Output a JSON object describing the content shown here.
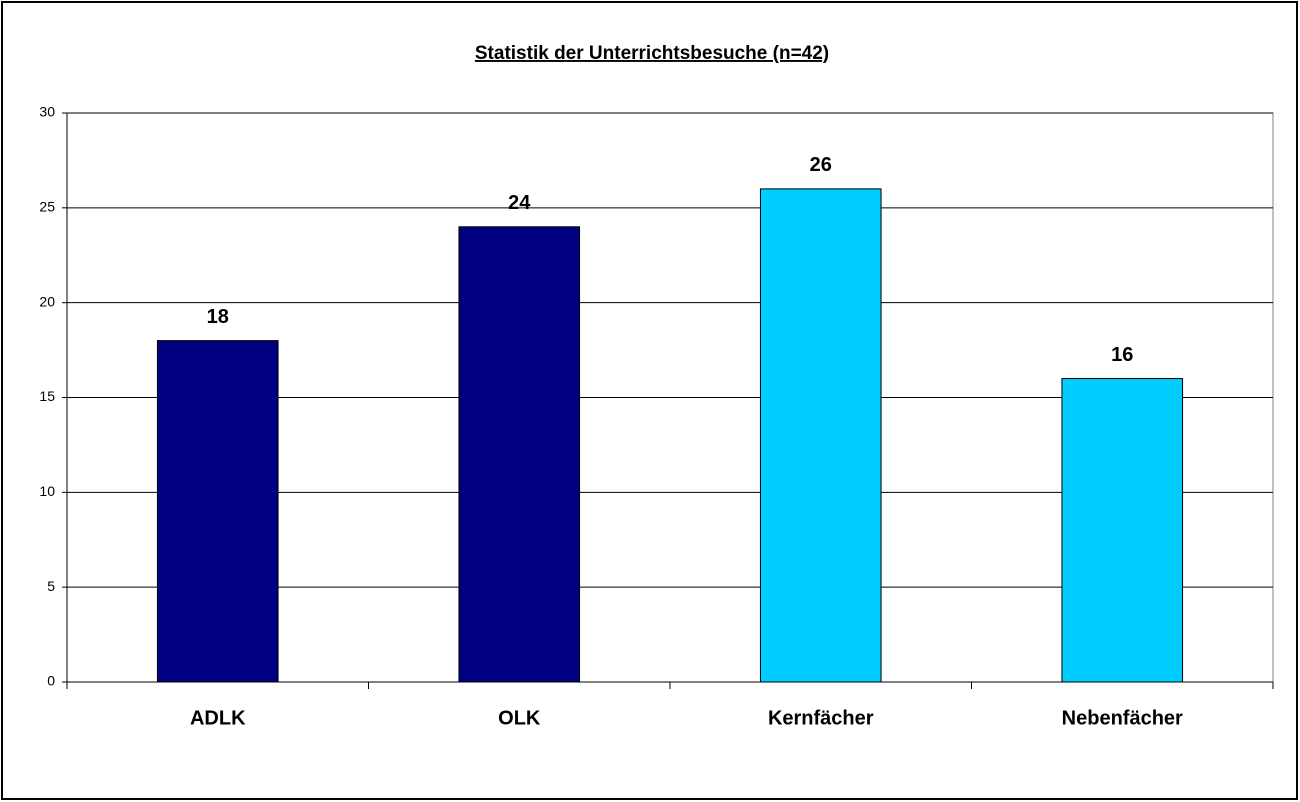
{
  "chart_data": {
    "type": "bar",
    "title": "Statistik der Unterrichtsbesuche (n=42)",
    "categories": [
      "ADLK",
      "OLK",
      "Kernfächer",
      "Nebenfächer"
    ],
    "values": [
      18,
      24,
      26,
      16
    ],
    "colors": [
      "#000080",
      "#000080",
      "#00ccff",
      "#00ccff"
    ],
    "ylim": [
      0,
      30
    ],
    "yticks": [
      0,
      5,
      10,
      15,
      20,
      25,
      30
    ],
    "grid": true
  }
}
